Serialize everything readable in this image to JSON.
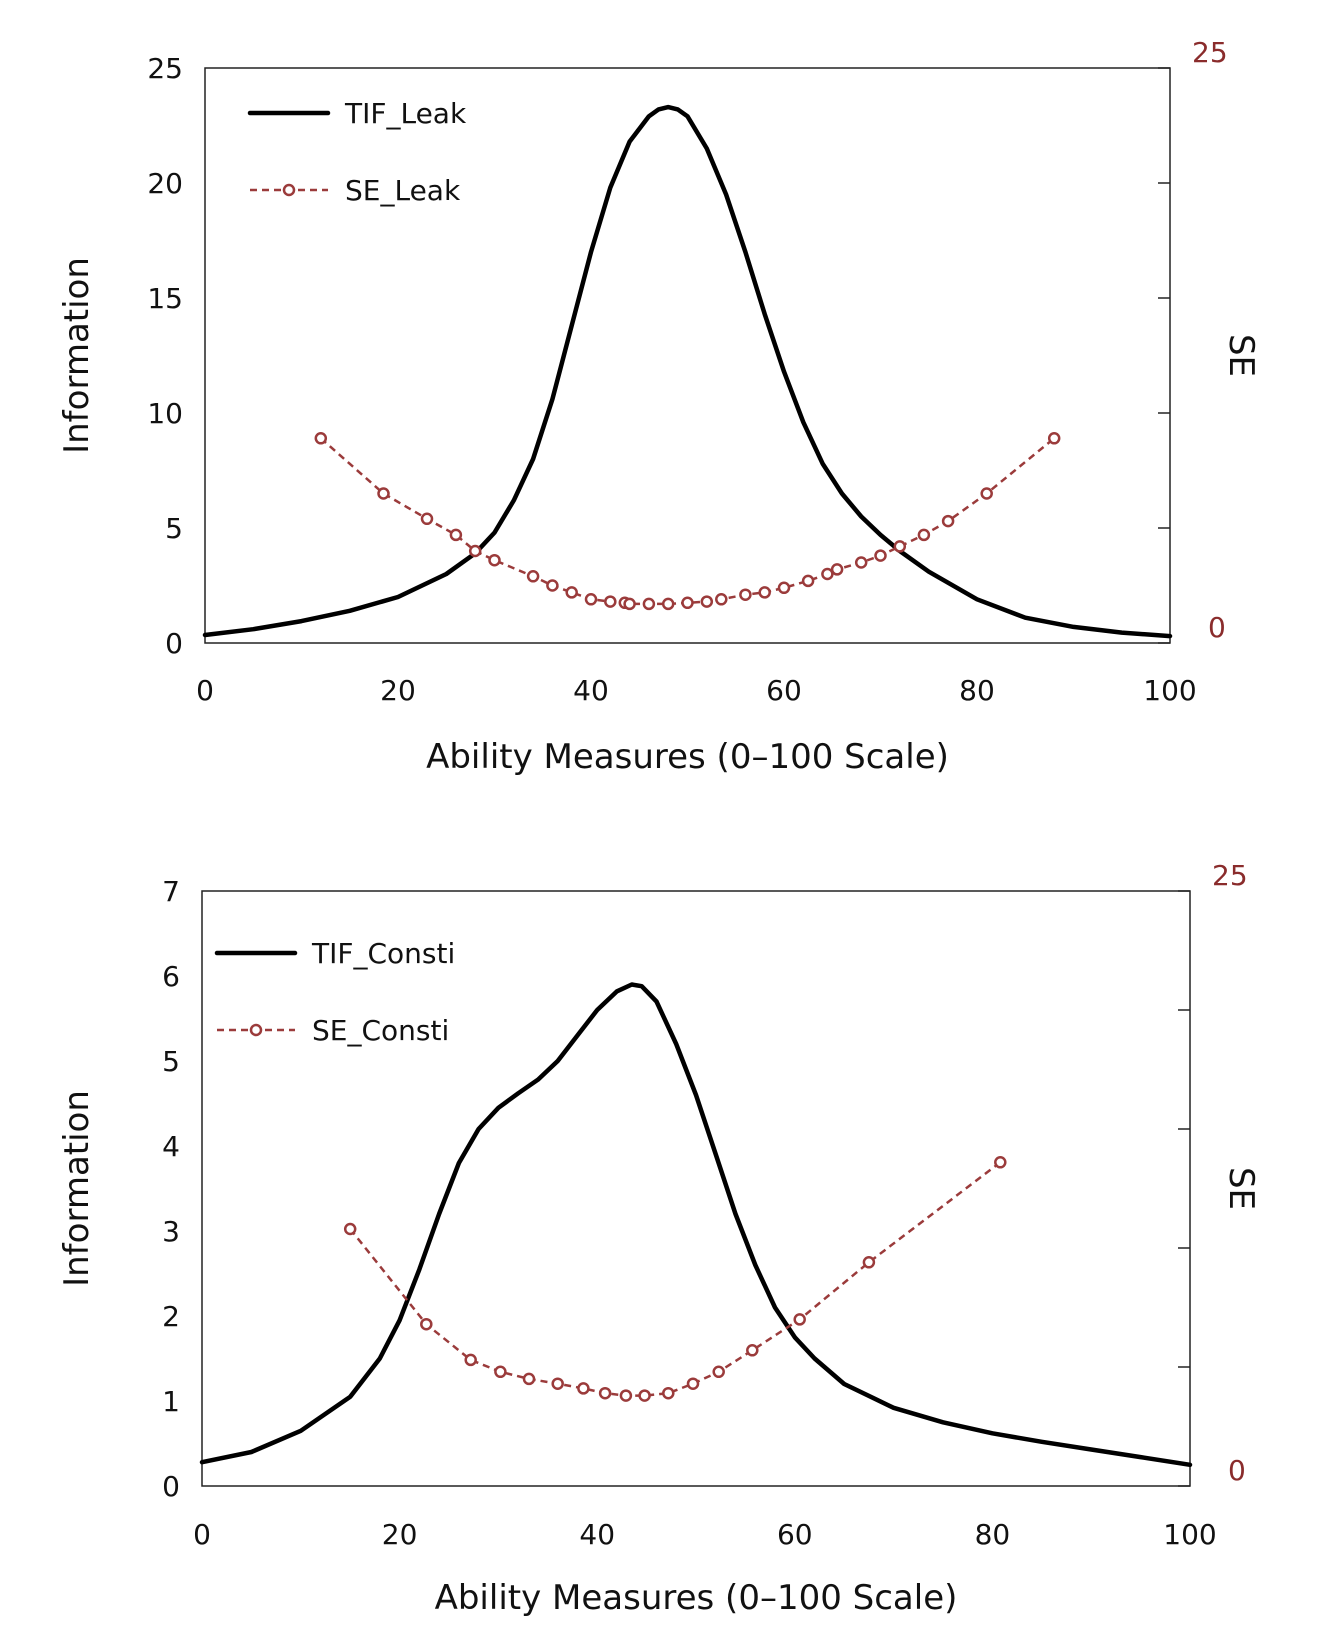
{
  "chart_data": [
    {
      "type": "line",
      "title": "",
      "xlabel": "Ability Measures (0–100 Scale)",
      "ylabel": "Information",
      "y2label": "SE",
      "xlim": [
        0,
        100
      ],
      "ylim": [
        0,
        25
      ],
      "y2lim": [
        0,
        25
      ],
      "xticks": [
        "0",
        "20",
        "40",
        "60",
        "80",
        "100"
      ],
      "yticks": [
        "0",
        "5",
        "10",
        "15",
        "20",
        "25"
      ],
      "y2ticks_labeled": [
        "0",
        "25"
      ],
      "y2tick_values": [
        0,
        5,
        10,
        15,
        20,
        25
      ],
      "legend_position": "top-left",
      "series": [
        {
          "name": "TIF_Leak",
          "axis": "left",
          "style": "solid",
          "color": "#000000",
          "x": [
            0,
            5,
            10,
            15,
            20,
            25,
            28,
            30,
            32,
            34,
            36,
            38,
            40,
            42,
            44,
            46,
            47,
            48,
            49,
            50,
            52,
            54,
            56,
            58,
            60,
            62,
            64,
            66,
            68,
            70,
            72,
            75,
            80,
            85,
            90,
            95,
            100
          ],
          "y": [
            0.35,
            0.6,
            0.95,
            1.4,
            2.0,
            3.0,
            3.9,
            4.8,
            6.2,
            8.0,
            10.6,
            13.8,
            17.0,
            19.8,
            21.8,
            22.9,
            23.2,
            23.3,
            23.2,
            22.9,
            21.5,
            19.5,
            17.0,
            14.3,
            11.8,
            9.6,
            7.8,
            6.5,
            5.5,
            4.7,
            4.0,
            3.1,
            1.9,
            1.1,
            0.7,
            0.45,
            0.3
          ]
        },
        {
          "name": "SE_Leak",
          "axis": "right",
          "style": "dashed-circle",
          "color": "#9b3b3b",
          "x": [
            12,
            18.5,
            23,
            26,
            28,
            30,
            34,
            36,
            38,
            40,
            42,
            43.5,
            44,
            46,
            48,
            50,
            52,
            53.5,
            56,
            58,
            60,
            62.5,
            64.5,
            65.5,
            68,
            70,
            72,
            74.5,
            77,
            81,
            88
          ],
          "y": [
            8.9,
            6.5,
            5.4,
            4.7,
            4.0,
            3.6,
            2.9,
            2.5,
            2.2,
            1.9,
            1.8,
            1.75,
            1.7,
            1.7,
            1.7,
            1.75,
            1.8,
            1.9,
            2.1,
            2.2,
            2.4,
            2.7,
            3.0,
            3.2,
            3.5,
            3.8,
            4.2,
            4.7,
            5.3,
            6.5,
            8.9
          ]
        }
      ]
    },
    {
      "type": "line",
      "title": "",
      "xlabel": "Ability Measures (0–100 Scale)",
      "ylabel": "Information",
      "y2label": "SE",
      "xlim": [
        0,
        100
      ],
      "ylim": [
        0,
        7
      ],
      "y2lim": [
        0,
        25
      ],
      "xticks": [
        "0",
        "20",
        "40",
        "60",
        "80",
        "100"
      ],
      "yticks": [
        "0",
        "1",
        "2",
        "3",
        "4",
        "5",
        "6",
        "7"
      ],
      "y2ticks_labeled": [
        "0",
        "25"
      ],
      "y2tick_values": [
        0,
        5,
        10,
        15,
        20,
        25
      ],
      "legend_position": "top-left",
      "series": [
        {
          "name": "TIF_Consti",
          "axis": "left",
          "style": "solid",
          "color": "#000000",
          "x": [
            0,
            5,
            10,
            15,
            18,
            20,
            22,
            24,
            26,
            28,
            30,
            32,
            34,
            36,
            38,
            40,
            42,
            43.5,
            44.5,
            46,
            48,
            50,
            52,
            54,
            56,
            58,
            60,
            62,
            65,
            70,
            75,
            80,
            85,
            90,
            95,
            100
          ],
          "y": [
            0.28,
            0.4,
            0.65,
            1.05,
            1.5,
            1.95,
            2.55,
            3.2,
            3.8,
            4.2,
            4.45,
            4.62,
            4.78,
            5.0,
            5.3,
            5.6,
            5.82,
            5.9,
            5.88,
            5.7,
            5.2,
            4.6,
            3.9,
            3.2,
            2.6,
            2.1,
            1.75,
            1.5,
            1.2,
            0.92,
            0.75,
            0.62,
            0.52,
            0.43,
            0.34,
            0.25
          ]
        },
        {
          "name": "SE_Consti",
          "axis": "right",
          "style": "dashed-circle",
          "color": "#9b3b3b",
          "x": [
            15,
            22.7,
            27.2,
            30.2,
            33.1,
            36.0,
            38.6,
            40.8,
            42.9,
            44.8,
            47.2,
            49.7,
            52.3,
            55.7,
            60.5,
            67.5,
            80.8
          ],
          "y": [
            10.8,
            6.8,
            5.3,
            4.8,
            4.5,
            4.3,
            4.1,
            3.9,
            3.8,
            3.8,
            3.9,
            4.3,
            4.8,
            5.7,
            7.0,
            9.4,
            13.6
          ]
        }
      ]
    }
  ]
}
